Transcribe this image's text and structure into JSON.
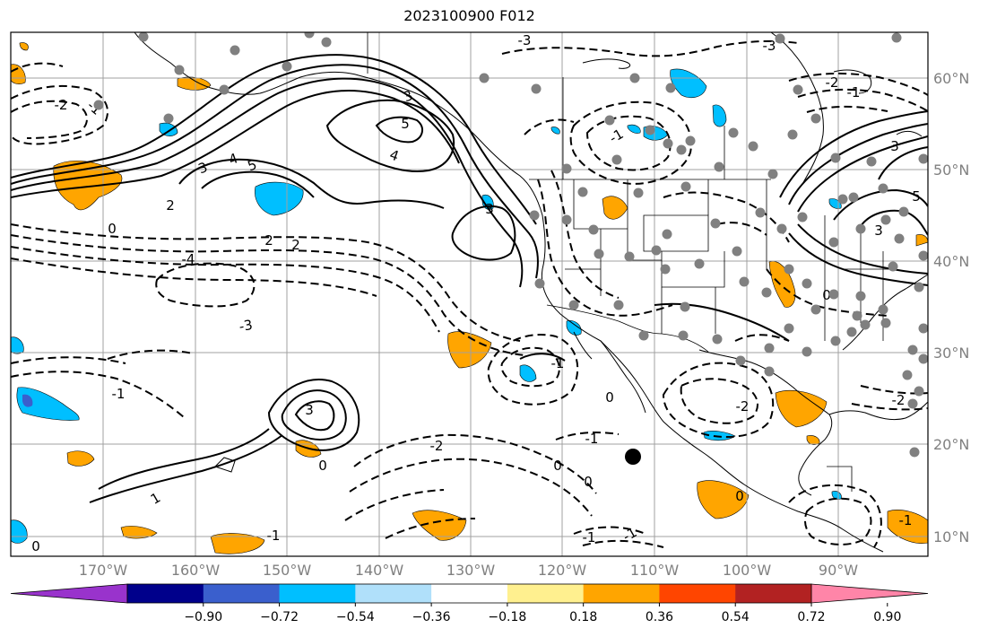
{
  "title": "2023100900 F012",
  "map": {
    "lon_ticks": [
      "170°W",
      "160°W",
      "150°W",
      "140°W",
      "130°W",
      "120°W",
      "110°W",
      "100°W",
      "90°W"
    ],
    "lat_ticks": [
      "60°N",
      "50°N",
      "40°N",
      "30°N",
      "20°N",
      "10°N"
    ],
    "contour_labels": [
      "3",
      "3",
      "5",
      "4",
      "5",
      "4",
      "3",
      "2",
      "2",
      "2",
      "0",
      "-4",
      "-3",
      "-2",
      "-1",
      "-1",
      "-2",
      "0",
      "-3",
      "-3",
      "-2",
      "-1",
      "3",
      "1",
      "-1",
      "0",
      "-2",
      "-1",
      "0",
      "0",
      "-1",
      "-1",
      "0",
      "-1",
      "3",
      "5",
      "3",
      "0",
      "-2",
      "-1",
      "-1",
      "0"
    ]
  },
  "colorbar": {
    "tick_labels": [
      "−0.90",
      "−0.72",
      "−0.54",
      "−0.36",
      "−0.18",
      "0.18",
      "0.36",
      "0.54",
      "0.72",
      "0.90"
    ],
    "colors": [
      "#9933cc",
      "#00008b",
      "#3a5fcd",
      "#00bfff",
      "#b0e0fa",
      "#ffffff",
      "#fff08f",
      "#ffa500",
      "#ff4500",
      "#b22222",
      "#ff85a8"
    ]
  }
}
